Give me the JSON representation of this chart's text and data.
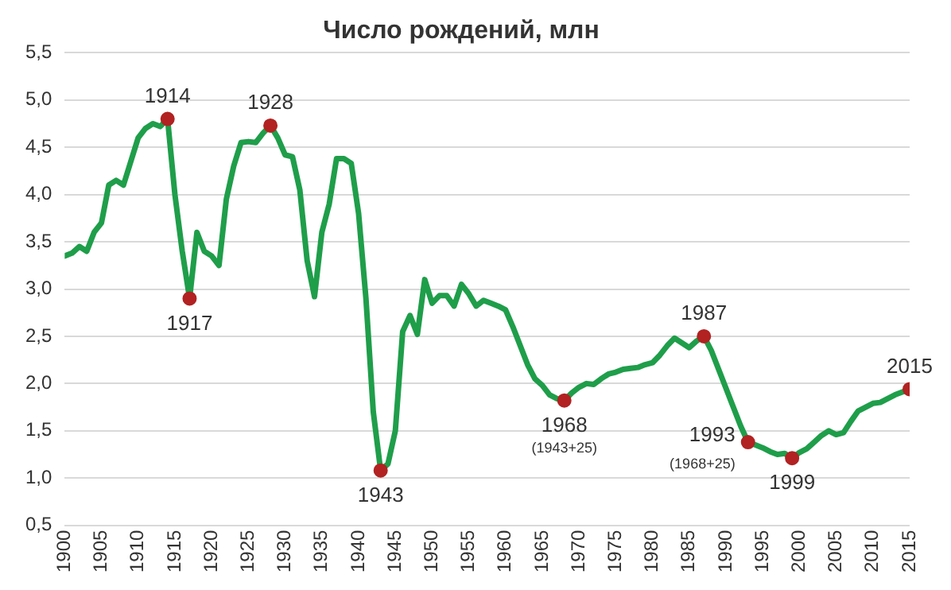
{
  "chart_data": {
    "type": "line",
    "title": "Число рождений, млн",
    "x": [
      1900,
      1901,
      1902,
      1903,
      1904,
      1905,
      1906,
      1907,
      1908,
      1909,
      1910,
      1911,
      1912,
      1913,
      1914,
      1915,
      1916,
      1917,
      1918,
      1919,
      1920,
      1921,
      1922,
      1923,
      1924,
      1925,
      1926,
      1927,
      1928,
      1929,
      1930,
      1931,
      1932,
      1933,
      1934,
      1935,
      1936,
      1937,
      1938,
      1939,
      1940,
      1941,
      1942,
      1943,
      1944,
      1945,
      1946,
      1947,
      1948,
      1949,
      1950,
      1951,
      1952,
      1953,
      1954,
      1955,
      1956,
      1957,
      1958,
      1959,
      1960,
      1961,
      1962,
      1963,
      1964,
      1965,
      1966,
      1967,
      1968,
      1969,
      1970,
      1971,
      1972,
      1973,
      1974,
      1975,
      1976,
      1977,
      1978,
      1979,
      1980,
      1981,
      1982,
      1983,
      1984,
      1985,
      1986,
      1987,
      1988,
      1989,
      1990,
      1991,
      1992,
      1993,
      1994,
      1995,
      1996,
      1997,
      1998,
      1999,
      2000,
      2001,
      2002,
      2003,
      2004,
      2005,
      2006,
      2007,
      2008,
      2009,
      2010,
      2011,
      2012,
      2013,
      2014,
      2015
    ],
    "series": [
      {
        "color": "#1f9e4a",
        "marker": "none",
        "values": [
          3.35,
          3.38,
          3.45,
          3.4,
          3.6,
          3.7,
          4.1,
          4.15,
          4.1,
          4.35,
          4.6,
          4.7,
          4.75,
          4.72,
          4.8,
          4.0,
          3.4,
          2.9,
          3.6,
          3.4,
          3.35,
          3.25,
          3.95,
          4.3,
          4.55,
          4.56,
          4.55,
          4.65,
          4.73,
          4.6,
          4.42,
          4.4,
          4.05,
          3.3,
          2.92,
          3.6,
          3.9,
          4.38,
          4.38,
          4.33,
          3.8,
          2.9,
          1.7,
          1.08,
          1.15,
          1.5,
          2.55,
          2.72,
          2.52,
          3.1,
          2.85,
          2.93,
          2.93,
          2.82,
          3.05,
          2.95,
          2.82,
          2.88,
          2.85,
          2.82,
          2.78,
          2.6,
          2.4,
          2.2,
          2.05,
          1.98,
          1.88,
          1.84,
          1.82,
          1.9,
          1.96,
          2.0,
          1.99,
          2.05,
          2.1,
          2.12,
          2.15,
          2.16,
          2.17,
          2.2,
          2.22,
          2.3,
          2.4,
          2.48,
          2.43,
          2.38,
          2.45,
          2.5,
          2.35,
          2.15,
          1.95,
          1.75,
          1.55,
          1.38,
          1.35,
          1.32,
          1.28,
          1.25,
          1.26,
          1.21,
          1.27,
          1.31,
          1.38,
          1.45,
          1.5,
          1.46,
          1.48,
          1.6,
          1.71,
          1.75,
          1.79,
          1.8,
          1.84,
          1.88,
          1.91,
          1.94
        ]
      },
      {
        "type": "scatter",
        "color": "#b22222",
        "marker": "circle",
        "x": [
          1914,
          1917,
          1928,
          1943,
          1968,
          1987,
          1993,
          1999,
          2015
        ],
        "values": [
          4.8,
          2.9,
          4.73,
          1.08,
          1.82,
          2.5,
          1.38,
          1.21,
          1.94
        ]
      }
    ],
    "annotations": [
      {
        "text": "1914",
        "x": 1914,
        "y": 4.8
      },
      {
        "text": "1917",
        "x": 1917,
        "y": 2.9
      },
      {
        "text": "1928",
        "x": 1928,
        "y": 4.73
      },
      {
        "text": "1943",
        "x": 1943,
        "y": 1.08
      },
      {
        "text": "1968",
        "x": 1968,
        "y": 1.82
      },
      {
        "text": "(1943+25)",
        "x": 1968,
        "y": 1.82
      },
      {
        "text": "1987",
        "x": 1987,
        "y": 2.5
      },
      {
        "text": "1993",
        "x": 1993,
        "y": 1.38
      },
      {
        "text": "(1968+25)",
        "x": 1993,
        "y": 1.38
      },
      {
        "text": "1999",
        "x": 1999,
        "y": 1.21
      },
      {
        "text": "2015",
        "x": 2015,
        "y": 1.94
      }
    ],
    "xlim": [
      1900,
      2015
    ],
    "xticks": [
      1900,
      1905,
      1910,
      1915,
      1920,
      1925,
      1930,
      1935,
      1940,
      1945,
      1950,
      1955,
      1960,
      1965,
      1970,
      1975,
      1980,
      1985,
      1990,
      1995,
      2000,
      2005,
      2010,
      2015
    ],
    "ylim": [
      0.5,
      5.5
    ],
    "yticks": [
      {
        "value": 0.5,
        "label": "0,5"
      },
      {
        "value": 1,
        "label": "1,0"
      },
      {
        "value": 1.5,
        "label": "1,5"
      },
      {
        "value": 2,
        "label": "2,0"
      },
      {
        "value": 2.5,
        "label": "2,5"
      },
      {
        "value": 3,
        "label": "3,0"
      },
      {
        "value": 3.5,
        "label": "3,5"
      },
      {
        "value": 4,
        "label": "4,0"
      },
      {
        "value": 4.5,
        "label": "4,5"
      },
      {
        "value": 5,
        "label": "5,0"
      },
      {
        "value": 5.5,
        "label": "5,5"
      }
    ],
    "grid": "y",
    "legend": false
  }
}
